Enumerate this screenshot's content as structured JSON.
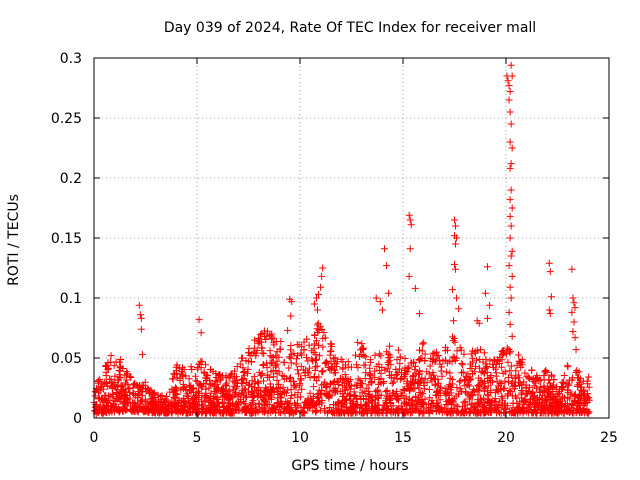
{
  "chart_data": {
    "type": "scatter",
    "title": "Day 039 of 2024, Rate Of TEC Index for receiver mall",
    "xlabel": "GPS time / hours",
    "ylabel": "ROTI / TECUs",
    "xlim": [
      0,
      25
    ],
    "ylim": [
      0,
      0.3
    ],
    "x_ticks": [
      0,
      5,
      10,
      15,
      20,
      25
    ],
    "x_tick_labels": [
      "0",
      "5",
      "10",
      "15",
      "20",
      "25"
    ],
    "y_ticks": [
      0,
      0.05,
      0.1,
      0.15,
      0.2,
      0.25,
      0.3
    ],
    "y_tick_labels": [
      "0",
      "0.05",
      "0.1",
      "0.15",
      "0.2",
      "0.25",
      "0.3"
    ],
    "grid": true,
    "marker": "plus",
    "color": "#ff0000",
    "series": [
      {
        "values_description_note": null,
        "points": [
          [
            2.2,
            0.094
          ],
          [
            2.25,
            0.086
          ],
          [
            2.3,
            0.083
          ],
          [
            2.3,
            0.074
          ],
          [
            2.35,
            0.053
          ],
          [
            5.1,
            0.082
          ],
          [
            5.2,
            0.071
          ],
          [
            9.5,
            0.099
          ],
          [
            9.6,
            0.097
          ],
          [
            9.55,
            0.085
          ],
          [
            9.4,
            0.073
          ],
          [
            10.7,
            0.095
          ],
          [
            10.8,
            0.1
          ],
          [
            10.9,
            0.103
          ],
          [
            11.0,
            0.109
          ],
          [
            11.05,
            0.118
          ],
          [
            11.1,
            0.125
          ],
          [
            10.85,
            0.09
          ],
          [
            11.0,
            0.076
          ],
          [
            12.8,
            0.063
          ],
          [
            13.0,
            0.062
          ],
          [
            13.7,
            0.1
          ],
          [
            13.9,
            0.097
          ],
          [
            14.1,
            0.141
          ],
          [
            14.2,
            0.127
          ],
          [
            14.3,
            0.104
          ],
          [
            14.0,
            0.09
          ],
          [
            15.3,
            0.169
          ],
          [
            15.35,
            0.165
          ],
          [
            15.4,
            0.161
          ],
          [
            15.35,
            0.141
          ],
          [
            15.3,
            0.118
          ],
          [
            15.6,
            0.108
          ],
          [
            15.8,
            0.087
          ],
          [
            17.5,
            0.165
          ],
          [
            17.55,
            0.16
          ],
          [
            17.5,
            0.152
          ],
          [
            17.6,
            0.15
          ],
          [
            17.55,
            0.145
          ],
          [
            17.5,
            0.128
          ],
          [
            17.55,
            0.124
          ],
          [
            17.4,
            0.107
          ],
          [
            17.6,
            0.1
          ],
          [
            17.7,
            0.091
          ],
          [
            17.45,
            0.081
          ],
          [
            18.6,
            0.081
          ],
          [
            18.7,
            0.079
          ],
          [
            19.0,
            0.104
          ],
          [
            19.1,
            0.083
          ],
          [
            19.2,
            0.094
          ],
          [
            19.1,
            0.126
          ],
          [
            20.05,
            0.285
          ],
          [
            20.1,
            0.281
          ],
          [
            20.15,
            0.277
          ],
          [
            20.2,
            0.272
          ],
          [
            20.25,
            0.294
          ],
          [
            20.3,
            0.285
          ],
          [
            20.15,
            0.265
          ],
          [
            20.2,
            0.255
          ],
          [
            20.25,
            0.245
          ],
          [
            20.2,
            0.23
          ],
          [
            20.3,
            0.225
          ],
          [
            20.25,
            0.212
          ],
          [
            20.2,
            0.208
          ],
          [
            20.25,
            0.19
          ],
          [
            20.2,
            0.182
          ],
          [
            20.3,
            0.175
          ],
          [
            20.2,
            0.168
          ],
          [
            20.25,
            0.16
          ],
          [
            20.2,
            0.15
          ],
          [
            20.3,
            0.139
          ],
          [
            20.25,
            0.135
          ],
          [
            20.15,
            0.127
          ],
          [
            20.3,
            0.118
          ],
          [
            20.2,
            0.109
          ],
          [
            20.25,
            0.1
          ],
          [
            20.15,
            0.088
          ],
          [
            20.2,
            0.078
          ],
          [
            20.3,
            0.068
          ],
          [
            22.1,
            0.129
          ],
          [
            22.15,
            0.122
          ],
          [
            22.2,
            0.101
          ],
          [
            22.1,
            0.09
          ],
          [
            22.15,
            0.087
          ],
          [
            23.2,
            0.124
          ],
          [
            23.25,
            0.1
          ],
          [
            23.3,
            0.096
          ],
          [
            23.35,
            0.092
          ],
          [
            23.2,
            0.088
          ],
          [
            23.3,
            0.08
          ],
          [
            23.25,
            0.072
          ],
          [
            23.35,
            0.067
          ],
          [
            23.4,
            0.057
          ]
        ]
      }
    ],
    "dense_band_envelope": {
      "x": [
        0.0,
        0.5,
        0.8,
        1.0,
        1.3,
        1.6,
        2.0,
        2.5,
        3.0,
        3.5,
        4.0,
        4.5,
        5.0,
        5.5,
        6.0,
        6.5,
        7.0,
        7.5,
        8.0,
        8.5,
        9.0,
        9.5,
        10.0,
        10.5,
        11.0,
        11.5,
        12.0,
        12.5,
        13.0,
        13.5,
        14.0,
        14.5,
        15.0,
        15.5,
        16.0,
        16.5,
        17.0,
        17.5,
        18.0,
        18.5,
        19.0,
        19.5,
        20.0,
        20.5,
        21.0,
        21.5,
        22.0,
        22.5,
        23.0,
        23.5,
        24.0
      ],
      "upper": [
        0.028,
        0.042,
        0.053,
        0.046,
        0.05,
        0.04,
        0.03,
        0.03,
        0.02,
        0.018,
        0.045,
        0.04,
        0.05,
        0.045,
        0.04,
        0.035,
        0.045,
        0.06,
        0.07,
        0.075,
        0.065,
        0.06,
        0.065,
        0.07,
        0.085,
        0.065,
        0.05,
        0.048,
        0.06,
        0.05,
        0.06,
        0.06,
        0.055,
        0.05,
        0.065,
        0.055,
        0.06,
        0.07,
        0.055,
        0.06,
        0.055,
        0.05,
        0.06,
        0.055,
        0.045,
        0.04,
        0.04,
        0.03,
        0.045,
        0.04,
        0.035
      ],
      "lower": [
        0.003,
        0.004,
        0.005,
        0.005,
        0.005,
        0.006,
        0.005,
        0.005,
        0.004,
        0.004,
        0.004,
        0.004,
        0.004,
        0.004,
        0.004,
        0.004,
        0.004,
        0.004,
        0.004,
        0.004,
        0.004,
        0.004,
        0.004,
        0.004,
        0.004,
        0.004,
        0.004,
        0.004,
        0.004,
        0.004,
        0.004,
        0.004,
        0.004,
        0.004,
        0.004,
        0.004,
        0.004,
        0.004,
        0.004,
        0.004,
        0.004,
        0.004,
        0.004,
        0.004,
        0.004,
        0.004,
        0.004,
        0.004,
        0.004,
        0.004,
        0.004
      ]
    }
  }
}
